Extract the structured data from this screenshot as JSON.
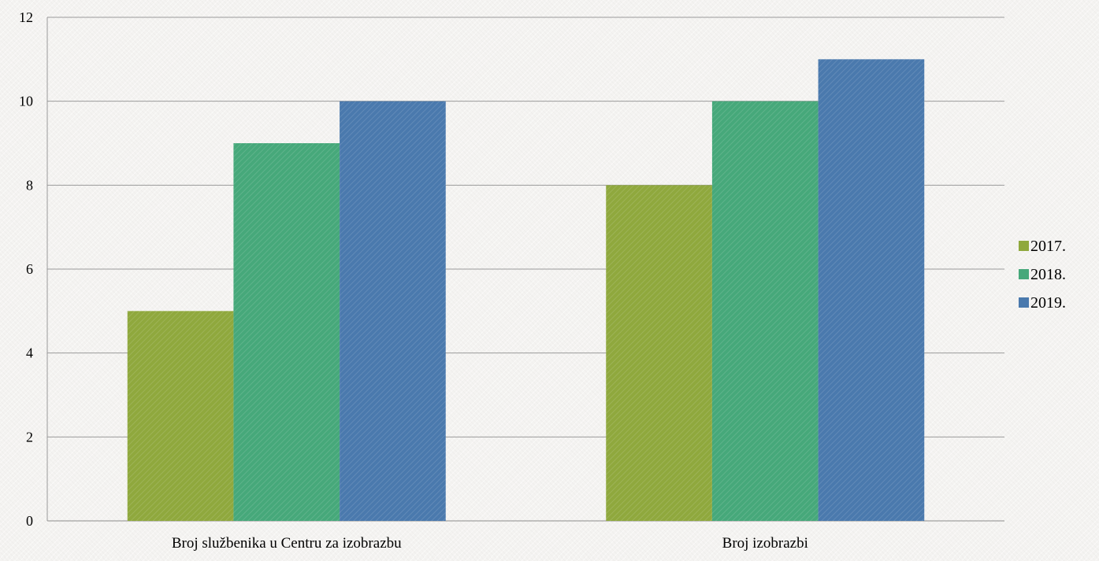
{
  "chart_data": {
    "type": "bar",
    "categories": [
      "Broj službenika u Centru za izobrazbu",
      "Broj izobrazbi"
    ],
    "series": [
      {
        "name": "2017.",
        "values": [
          5,
          8
        ],
        "color": "#8fa83d"
      },
      {
        "name": "2018.",
        "values": [
          9,
          10
        ],
        "color": "#46a87a"
      },
      {
        "name": "2019.",
        "values": [
          10,
          11
        ],
        "color": "#4a79ad"
      }
    ],
    "title": "",
    "xlabel": "",
    "ylabel": "",
    "ylim": [
      0,
      12
    ],
    "yticks": [
      0,
      2,
      4,
      6,
      8,
      10,
      12
    ],
    "grid": true,
    "legend": "right"
  }
}
